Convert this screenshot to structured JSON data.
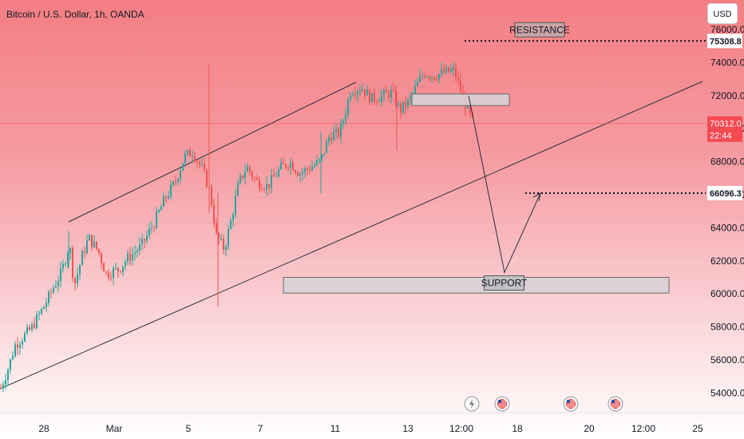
{
  "chart_data": {
    "type": "candlestick",
    "title": "Bitcoin / U.S. Dollar, 1h, OANDA",
    "currency": "USD",
    "ylim": [
      53300,
      77000
    ],
    "y_ticks": [
      {
        "value": 54000,
        "label": "54000.0"
      },
      {
        "value": 56000,
        "label": "56000.0"
      },
      {
        "value": 58000,
        "label": "58000.0"
      },
      {
        "value": 60000,
        "label": "60000.0"
      },
      {
        "value": 62000,
        "label": "62000.0"
      },
      {
        "value": 64000,
        "label": "64000.0"
      },
      {
        "value": 66000,
        "label": "66000.0"
      },
      {
        "value": 68000,
        "label": "68000.0"
      },
      {
        "value": 70000,
        "label": "70000.0"
      },
      {
        "value": 72000,
        "label": "72000.0"
      },
      {
        "value": 74000,
        "label": "74000.0"
      },
      {
        "value": 76000,
        "label": "76000.0"
      }
    ],
    "x_ticks": [
      "28",
      "Mar",
      "5",
      "7",
      "11",
      "13",
      "12:00",
      "18",
      "20",
      "12:00",
      "25"
    ],
    "current_price": {
      "value": 70312.0,
      "label": "70312.0",
      "countdown": "22:44"
    },
    "levels": [
      {
        "name": "resistance",
        "value": 75308.8,
        "label": "75308.8",
        "text": "RESISTANCE"
      },
      {
        "name": "target",
        "value": 66096.3,
        "label": "66096.3"
      }
    ],
    "zones": [
      {
        "name": "support",
        "low": 60050,
        "high": 61000,
        "text": "SUPPORT"
      },
      {
        "name": "breakdown",
        "low": 71400,
        "high": 72100,
        "text": ""
      }
    ],
    "series": [
      {
        "name": "BTCUSD",
        "keypoints": [
          [
            0,
            54300
          ],
          [
            10,
            55600
          ],
          [
            18,
            56900
          ],
          [
            28,
            57400
          ],
          [
            38,
            57900
          ],
          [
            50,
            58900
          ],
          [
            58,
            59600
          ],
          [
            66,
            60400
          ],
          [
            76,
            61300
          ],
          [
            86,
            63000
          ],
          [
            92,
            60500
          ],
          [
            102,
            62300
          ],
          [
            110,
            63400
          ],
          [
            122,
            62600
          ],
          [
            132,
            61200
          ],
          [
            148,
            61500
          ],
          [
            158,
            62100
          ],
          [
            176,
            62900
          ],
          [
            192,
            64300
          ],
          [
            206,
            65800
          ],
          [
            218,
            66700
          ],
          [
            230,
            68300
          ],
          [
            240,
            68600
          ],
          [
            252,
            67600
          ],
          [
            262,
            66200
          ],
          [
            270,
            63500
          ],
          [
            280,
            62700
          ],
          [
            290,
            64800
          ],
          [
            298,
            66700
          ],
          [
            308,
            67700
          ],
          [
            320,
            66800
          ],
          [
            334,
            66500
          ],
          [
            350,
            67600
          ],
          [
            362,
            68000
          ],
          [
            374,
            67300
          ],
          [
            386,
            67600
          ],
          [
            400,
            68000
          ],
          [
            412,
            69600
          ],
          [
            424,
            69700
          ],
          [
            430,
            70700
          ],
          [
            438,
            72300
          ],
          [
            452,
            72500
          ],
          [
            464,
            71800
          ],
          [
            478,
            72000
          ],
          [
            490,
            72200
          ],
          [
            500,
            71100
          ],
          [
            512,
            71700
          ],
          [
            522,
            72700
          ],
          [
            530,
            73400
          ],
          [
            542,
            73200
          ],
          [
            556,
            73400
          ],
          [
            568,
            73500
          ],
          [
            578,
            72000
          ],
          [
            586,
            71000
          ],
          [
            592,
            70300
          ]
        ]
      }
    ],
    "arrow_path": [
      [
        587,
        72000
      ],
      [
        632,
        61300
      ],
      [
        677,
        66096
      ]
    ]
  },
  "icons": [
    "lightning-icon",
    "us-flag-icon",
    "us-flag-icon",
    "us-flag-icon"
  ],
  "colors": {
    "up": "#26a69a",
    "down": "#ef5350",
    "price_tag_bg": "#f44a52",
    "level_tag_bg": "#ffffff",
    "zone_fill": "#d7d4d8",
    "zone_border": "#6a6a6a"
  }
}
